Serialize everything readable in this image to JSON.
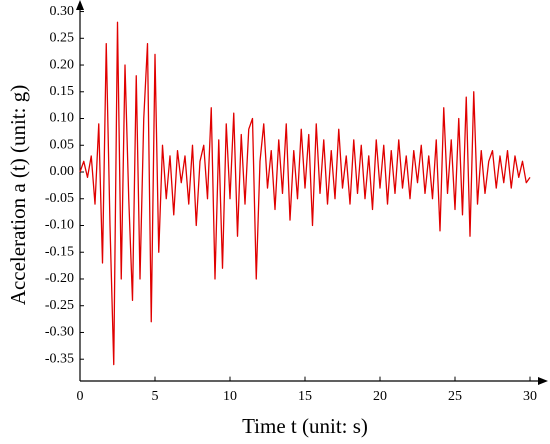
{
  "chart_data": {
    "type": "line",
    "x_label": "Time t (unit: s)",
    "y_label": "Acceleration a (t) (unit: g)",
    "color": "#e00000",
    "x": [
      0,
      0.25,
      0.5,
      0.75,
      1,
      1.25,
      1.5,
      1.75,
      2,
      2.25,
      2.5,
      2.75,
      3,
      3.25,
      3.5,
      3.75,
      4,
      4.25,
      4.5,
      4.75,
      5,
      5.25,
      5.5,
      5.75,
      6,
      6.25,
      6.5,
      6.75,
      7,
      7.25,
      7.5,
      7.75,
      8,
      8.25,
      8.5,
      8.75,
      9,
      9.25,
      9.5,
      9.75,
      10,
      10.25,
      10.5,
      10.75,
      11,
      11.25,
      11.5,
      11.75,
      12,
      12.25,
      12.5,
      12.75,
      13,
      13.25,
      13.5,
      13.75,
      14,
      14.25,
      14.5,
      14.75,
      15,
      15.25,
      15.5,
      15.75,
      16,
      16.25,
      16.5,
      16.75,
      17,
      17.25,
      17.5,
      17.75,
      18,
      18.25,
      18.5,
      18.75,
      19,
      19.25,
      19.5,
      19.75,
      20,
      20.25,
      20.5,
      20.75,
      21,
      21.25,
      21.5,
      21.75,
      22,
      22.25,
      22.5,
      22.75,
      23,
      23.25,
      23.5,
      23.75,
      24,
      24.25,
      24.5,
      24.75,
      25,
      25.25,
      25.5,
      25.75,
      26,
      26.25,
      26.5,
      26.75,
      27,
      27.25,
      27.5,
      27.75,
      28,
      28.25,
      28.5,
      28.75,
      29,
      29.25,
      29.5,
      29.75,
      30
    ],
    "values": [
      0.0,
      0.02,
      -0.01,
      0.03,
      -0.06,
      0.09,
      -0.17,
      0.24,
      -0.1,
      -0.36,
      0.28,
      -0.2,
      0.2,
      -0.05,
      -0.24,
      0.18,
      -0.2,
      0.1,
      0.24,
      -0.28,
      0.22,
      -0.15,
      0.05,
      -0.05,
      0.03,
      -0.08,
      0.04,
      -0.02,
      0.03,
      -0.06,
      0.05,
      -0.1,
      0.02,
      0.05,
      -0.05,
      0.12,
      -0.2,
      0.06,
      -0.18,
      0.09,
      -0.05,
      0.11,
      -0.12,
      0.07,
      -0.06,
      0.08,
      0.1,
      -0.2,
      0.02,
      0.09,
      -0.03,
      0.04,
      -0.07,
      0.06,
      -0.04,
      0.09,
      -0.09,
      0.04,
      -0.05,
      0.08,
      -0.03,
      0.07,
      -0.1,
      0.09,
      -0.04,
      0.06,
      -0.06,
      0.04,
      -0.05,
      0.08,
      -0.03,
      0.03,
      -0.06,
      0.06,
      -0.04,
      0.05,
      -0.05,
      0.03,
      -0.07,
      0.06,
      -0.03,
      0.05,
      -0.06,
      0.04,
      -0.04,
      0.06,
      -0.03,
      0.03,
      -0.05,
      0.04,
      -0.02,
      0.05,
      -0.04,
      0.03,
      -0.05,
      0.06,
      -0.11,
      0.12,
      -0.04,
      0.06,
      -0.07,
      0.1,
      -0.08,
      0.14,
      -0.12,
      0.15,
      -0.06,
      0.04,
      -0.04,
      0.02,
      0.04,
      -0.03,
      0.03,
      -0.02,
      0.04,
      -0.03,
      0.03,
      -0.01,
      0.02,
      -0.02,
      -0.01
    ],
    "xlim": [
      0,
      31
    ],
    "xticks": [
      0,
      5,
      10,
      15,
      20,
      25,
      30
    ],
    "ylim": [
      -0.39,
      0.31
    ],
    "yticks": [
      {
        "value": 0.3,
        "label": "0.30"
      },
      {
        "value": 0.25,
        "label": "0.25"
      },
      {
        "value": 0.2,
        "label": "0.20"
      },
      {
        "value": 0.15,
        "label": "0.15"
      },
      {
        "value": 0.1,
        "label": "0.10"
      },
      {
        "value": 0.05,
        "label": "0.05"
      },
      {
        "value": 0,
        "label": "0.00"
      },
      {
        "value": -0.05,
        "label": "-0.05"
      },
      {
        "value": -0.1,
        "label": "-0.10"
      },
      {
        "value": -0.15,
        "label": "-0.15"
      },
      {
        "value": -0.2,
        "label": "-0.20"
      },
      {
        "value": -0.25,
        "label": "-0.25"
      },
      {
        "value": -0.3,
        "label": "-0.30"
      },
      {
        "value": -0.35,
        "label": "-0.35"
      }
    ]
  }
}
